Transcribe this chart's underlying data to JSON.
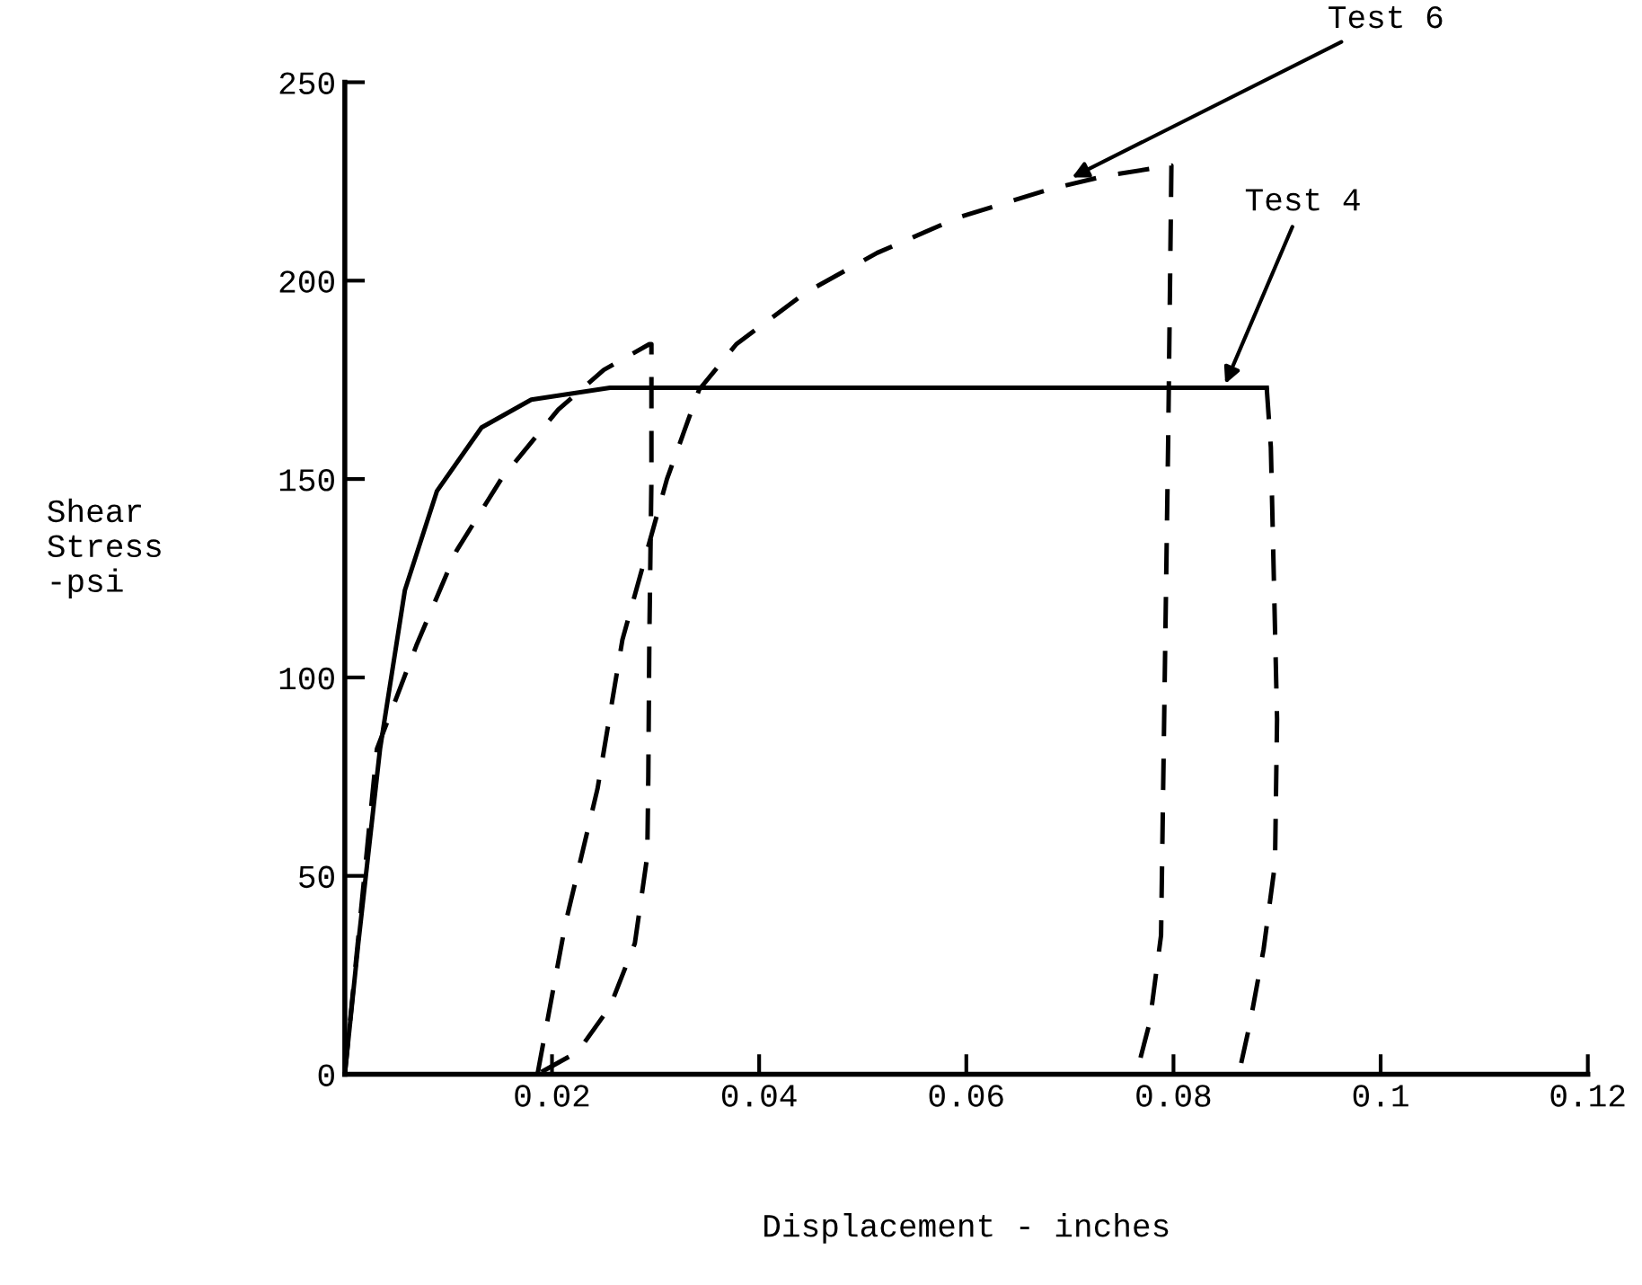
{
  "chart_data": {
    "type": "line",
    "xlabel": "Displacement - inches",
    "ylabel": "Shear\nStress\n-psi",
    "xlim": [
      0,
      0.12
    ],
    "ylim": [
      0,
      250
    ],
    "xticks": [
      0.02,
      0.04,
      0.06,
      0.08,
      0.1,
      0.12
    ],
    "yticks": [
      0,
      50,
      100,
      150,
      200,
      250
    ],
    "grid": false,
    "legend": false,
    "marker": "none",
    "series": [
      {
        "color": "#000000",
        "line_style": "solid",
        "x": [
          0,
          0.0013,
          0.0034,
          0.0058,
          0.0089,
          0.0132,
          0.018,
          0.0256,
          0.089
        ],
        "values": [
          0,
          33,
          82,
          122,
          147,
          163,
          170,
          173,
          173
        ]
      },
      {
        "color": "#000000",
        "line_style": "dashed",
        "x": [
          0.089,
          0.0894,
          0.09,
          0.0898,
          0.0887,
          0.0874,
          0.0863
        ],
        "values": [
          173,
          158,
          89.5,
          53,
          31.5,
          13,
          0
        ]
      },
      {
        "color": "#000000",
        "line_style": "dashed",
        "x": [
          0,
          0.0031,
          0.0069,
          0.0108,
          0.0151,
          0.0206,
          0.025,
          0.0294,
          0.0296,
          0.0296,
          0.0294,
          0.0293,
          0.0292,
          0.028,
          0.0256,
          0.0225,
          0.0186
        ],
        "values": [
          0,
          82,
          108,
          132,
          150,
          167.5,
          177.5,
          184,
          184,
          150,
          110,
          75,
          55,
          33,
          17,
          5.7,
          0
        ]
      },
      {
        "color": "#000000",
        "line_style": "dashed",
        "x": [
          0.0186,
          0.0213,
          0.0244,
          0.0268,
          0.0311,
          0.0342,
          0.0378,
          0.0445,
          0.0514,
          0.0593,
          0.068,
          0.0736,
          0.0798,
          0.0798,
          0.0795,
          0.0791,
          0.0788,
          0.0777,
          0.0764
        ],
        "values": [
          0,
          38,
          72,
          109.5,
          150,
          172.5,
          184,
          197,
          207,
          216,
          223,
          226.5,
          229,
          229,
          162,
          89.5,
          35,
          13,
          0
        ]
      }
    ],
    "annotations": [
      {
        "text": "Test 6",
        "x": 0.0702,
        "y": 226
      },
      {
        "text": "Test 4",
        "x": 0.085,
        "y": 174
      }
    ]
  }
}
